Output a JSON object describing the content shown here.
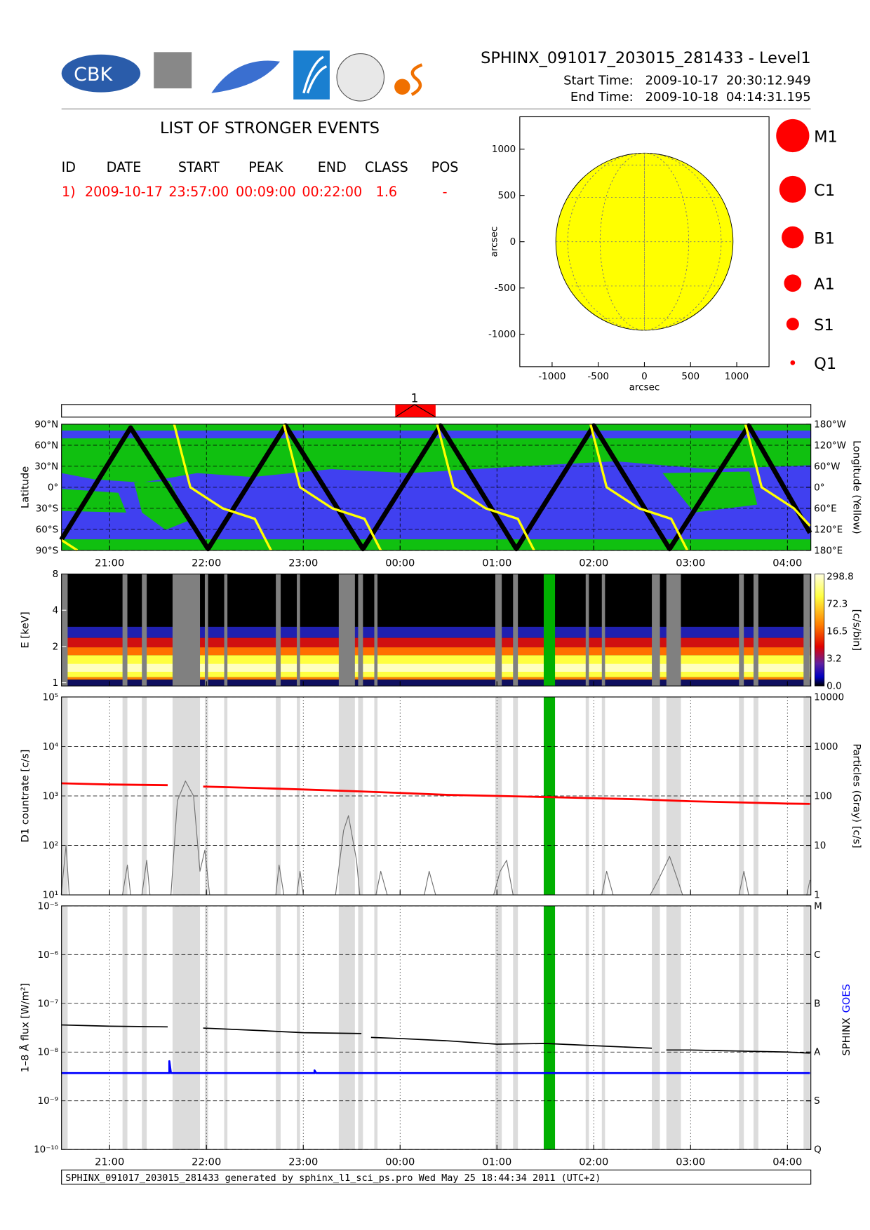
{
  "header": {
    "logo_text": "CBK",
    "title": "SPHINX_091017_203015_281433 - Level1",
    "start_label": "Start Time:",
    "start_date": "2009-10-17",
    "start_time": "20:30:12.949",
    "end_label": "End Time:",
    "end_date": "2009-10-18",
    "end_time": "04:14:31.195"
  },
  "events": {
    "title": "LIST OF STRONGER EVENTS",
    "columns": [
      "ID",
      "DATE",
      "START",
      "PEAK",
      "END",
      "CLASS",
      "POS"
    ],
    "rows": [
      [
        "1)",
        "2009-10-17",
        "23:57:00",
        "00:09:00",
        "00:22:00",
        "1.6",
        "-"
      ]
    ],
    "marker_labels": [
      "1"
    ],
    "color": "#ff0000"
  },
  "sun_map": {
    "type": "disk",
    "xlabel": "arcsec",
    "ylabel": "arcsec",
    "xlim": [
      -1350,
      1350
    ],
    "ylim": [
      -1350,
      1350
    ],
    "xticks": [
      -1000,
      -500,
      0,
      500,
      1000
    ],
    "yticks": [
      -1000,
      -500,
      0,
      500,
      1000
    ],
    "radius": 960,
    "color": "#ffff00"
  },
  "class_legend": [
    "M1",
    "C1",
    "B1",
    "A1",
    "S1",
    "Q1"
  ],
  "time_axis": {
    "xlim": [
      "20:30:12",
      "04:14:31"
    ],
    "xticks": [
      "21:00",
      "22:00",
      "23:00",
      "00:00",
      "01:00",
      "02:00",
      "03:00",
      "04:00"
    ]
  },
  "gaps": [
    [
      "20:30",
      "20:34"
    ],
    [
      "21:08",
      "21:11"
    ],
    [
      "21:20",
      "21:23"
    ],
    [
      "21:39",
      "21:56"
    ],
    [
      "21:59",
      "22:01"
    ],
    [
      "22:11",
      "22:13"
    ],
    [
      "22:43",
      "22:46"
    ],
    [
      "22:56",
      "22:58"
    ],
    [
      "23:22",
      "23:32"
    ],
    [
      "23:34",
      "23:37"
    ],
    [
      "23:44",
      "23:46"
    ],
    [
      "00:59",
      "01:03"
    ],
    [
      "01:10",
      "01:13"
    ],
    [
      "01:55",
      "01:57"
    ],
    [
      "02:05",
      "02:07"
    ],
    [
      "02:36",
      "02:41"
    ],
    [
      "02:45",
      "02:54"
    ],
    [
      "03:30",
      "03:33"
    ],
    [
      "03:39",
      "03:42"
    ],
    [
      "04:10",
      "04:14"
    ]
  ],
  "highlight": {
    "start": "01:29",
    "end": "01:36",
    "color": "#00b000"
  },
  "panels": [
    {
      "type": "line",
      "ylabel": "Latitude",
      "y2label": "Longitude (Yellow)",
      "ylim": [
        -90,
        90
      ],
      "log": false,
      "yticks": [
        {
          "value": 90,
          "label": "90°N"
        },
        {
          "value": 60,
          "label": "60°N"
        },
        {
          "value": 30,
          "label": "30°N"
        },
        {
          "value": 0,
          "label": "0°"
        },
        {
          "value": -30,
          "label": "30°S"
        },
        {
          "value": -60,
          "label": "60°S"
        },
        {
          "value": -90,
          "label": "90°S"
        }
      ],
      "y2lim": [
        -180,
        180
      ],
      "y2ticks": [
        {
          "value": 180,
          "label": "180°W"
        },
        {
          "value": 120,
          "label": "120°W"
        },
        {
          "value": 60,
          "label": "60°W"
        },
        {
          "value": 0,
          "label": "0°"
        },
        {
          "value": -60,
          "label": "60°E"
        },
        {
          "value": -120,
          "label": "120°E"
        },
        {
          "value": -180,
          "label": "180°E"
        }
      ],
      "series": [
        {
          "color": "#000000",
          "x": [
            "20:30",
            "21:13",
            "22:01",
            "22:49",
            "23:37",
            "00:25",
            "01:12",
            "02:00",
            "02:47",
            "03:36",
            "04:14"
          ],
          "values": [
            -75,
            85,
            -88,
            88,
            -88,
            88,
            -88,
            88,
            -88,
            88,
            -65
          ]
        },
        {
          "color": "#ffff00",
          "axis": "y2",
          "x": [
            "20:30",
            "20:40",
            "20:50",
            "21:40",
            "21:50",
            "22:10",
            "22:30",
            "22:40",
            "22:44",
            "22:48",
            "22:58",
            "23:18",
            "23:38",
            "23:48",
            "23:55",
            "00:23",
            "00:33",
            "00:53",
            "01:13",
            "01:23",
            "01:30",
            "01:58",
            "02:08",
            "02:28",
            "02:48",
            "02:58",
            "03:05",
            "03:34",
            "03:44",
            "04:04",
            "04:14"
          ],
          "values": [
            -150,
            -180,
            null,
            180,
            0,
            -60,
            -90,
            -180,
            null,
            180,
            0,
            -60,
            -90,
            -180,
            null,
            180,
            0,
            -60,
            -90,
            -180,
            null,
            180,
            0,
            -60,
            -90,
            -180,
            null,
            180,
            0,
            -60,
            -110
          ]
        }
      ]
    },
    {
      "type": "spectrogram",
      "ylabel": "E [keV]",
      "log": true,
      "ylim": [
        0.94,
        8
      ],
      "yticks": [
        8,
        4,
        2,
        1
      ],
      "colorbar_label": "[c/s/bin]",
      "colorbar_ticks": [
        298.8,
        72.3,
        16.5,
        3.2,
        {
          "value": 0,
          "label": "0.0"
        }
      ]
    },
    {
      "type": "line",
      "ylabel": "D1 countrate [c/s]",
      "y2label": "Particles (Gray) [c/s]",
      "log": true,
      "ylim": [
        10,
        100000
      ],
      "yticks": [
        {
          "value": 100000,
          "label": "10⁵"
        },
        {
          "value": 10000,
          "label": "10⁴"
        },
        {
          "value": 1000,
          "label": "10³"
        },
        {
          "value": 100,
          "label": "10²"
        },
        {
          "value": 10,
          "label": "10¹"
        }
      ],
      "y2lim": [
        1,
        10000
      ],
      "y2ticks": [
        10000,
        1000,
        100,
        10,
        1
      ],
      "series": [
        {
          "color": "#707070",
          "axis": "y2",
          "x": [
            "20:30",
            "20:33",
            "20:35",
            "21:08",
            "21:11",
            "21:13",
            "21:20",
            "21:23",
            "21:25",
            "21:38",
            "21:42",
            "21:47",
            "21:52",
            "21:56",
            "21:59",
            "22:02",
            "22:43",
            "22:45",
            "22:48",
            "22:56",
            "22:58",
            "23:00",
            "23:20",
            "23:25",
            "23:28",
            "23:33",
            "23:35",
            "23:45",
            "23:48",
            "23:52",
            "00:15",
            "00:18",
            "00:22",
            "00:58",
            "01:02",
            "01:06",
            "01:10",
            "02:05",
            "02:08",
            "02:12",
            "02:35",
            "02:40",
            "02:47",
            "02:52",
            "02:55",
            "03:30",
            "03:33",
            "03:36",
            "04:12",
            "04:14"
          ],
          "values": [
            1,
            10,
            1,
            1,
            4,
            1,
            1,
            5,
            1,
            1,
            80,
            200,
            100,
            3,
            8,
            1,
            1,
            4,
            1,
            1,
            3,
            1,
            1,
            20,
            40,
            5,
            1,
            1,
            3,
            1,
            1,
            3,
            1,
            1,
            3,
            5,
            1,
            1,
            3,
            1,
            1,
            2,
            6,
            2,
            1,
            1,
            3,
            1,
            1,
            2
          ]
        },
        {
          "color": "#ff0000",
          "x": [
            "20:30",
            "21:00",
            "21:36",
            "21:45",
            "21:58",
            "22:30",
            "23:00",
            "23:30",
            "00:00",
            "00:30",
            "01:00",
            "01:30",
            "02:00",
            "02:30",
            "03:00",
            "03:30",
            "04:00",
            "04:14"
          ],
          "values": [
            1800,
            1700,
            1650,
            null,
            1550,
            1450,
            1350,
            1250,
            1150,
            1050,
            1000,
            950,
            900,
            850,
            780,
            740,
            700,
            690
          ]
        }
      ]
    },
    {
      "type": "line",
      "ylabel": "1–8 Å flux [W/m²]",
      "log": true,
      "ylim": [
        1e-10,
        1e-05
      ],
      "yticks": [
        {
          "value": 1e-05,
          "label": "10⁻⁵"
        },
        {
          "value": 1e-06,
          "label": "10⁻⁶"
        },
        {
          "value": 1e-07,
          "label": "10⁻⁷"
        },
        {
          "value": 1e-08,
          "label": "10⁻⁸"
        },
        {
          "value": 1e-09,
          "label": "10⁻⁹"
        },
        {
          "value": 1e-10,
          "label": "10⁻¹⁰"
        }
      ],
      "y2lim": [
        1e-10,
        1e-05
      ],
      "y2ticks": [
        {
          "value": 1e-05,
          "label": "M"
        },
        {
          "value": 1e-06,
          "label": "C"
        },
        {
          "value": 1e-07,
          "label": "B"
        },
        {
          "value": 1e-08,
          "label": "A"
        },
        {
          "value": 1e-09,
          "label": "S"
        },
        {
          "value": 1e-10,
          "label": "Q"
        }
      ],
      "series": [
        {
          "name": "SPHINX",
          "color": "#000000",
          "x": [
            "20:30",
            "21:00",
            "21:36",
            "21:45",
            "21:58",
            "22:30",
            "23:00",
            "23:36",
            "23:40",
            "23:42",
            "00:00",
            "00:30",
            "01:00",
            "01:30",
            "02:00",
            "02:36",
            "02:40",
            "02:45",
            "03:00",
            "03:30",
            "04:00",
            "04:14"
          ],
          "values": [
            3.6e-08,
            3.4e-08,
            3.3e-08,
            null,
            3.1e-08,
            2.8e-08,
            2.5e-08,
            2.4e-08,
            null,
            2e-08,
            1.9e-08,
            1.7e-08,
            1.45e-08,
            1.5e-08,
            1.35e-08,
            1.2e-08,
            null,
            1.1e-08,
            1.1e-08,
            1.05e-08,
            1e-08,
            9.5e-09
          ]
        },
        {
          "name": "GOES",
          "color": "#0000ff",
          "x": [
            "20:30",
            "21:37",
            "21:37",
            "21:38",
            "23:07",
            "23:07",
            "23:08",
            "04:14"
          ],
          "values": [
            3.7e-09,
            3.7e-09,
            6.5e-09,
            3.7e-09,
            3.7e-09,
            4.2e-09,
            3.7e-09,
            3.7e-09
          ]
        }
      ]
    }
  ],
  "footer": "SPHINX_091017_203015_281433 generated by sphinx_l1_sci_ps.pro Wed May 25 18:44:34 2011 (UTC+2)"
}
